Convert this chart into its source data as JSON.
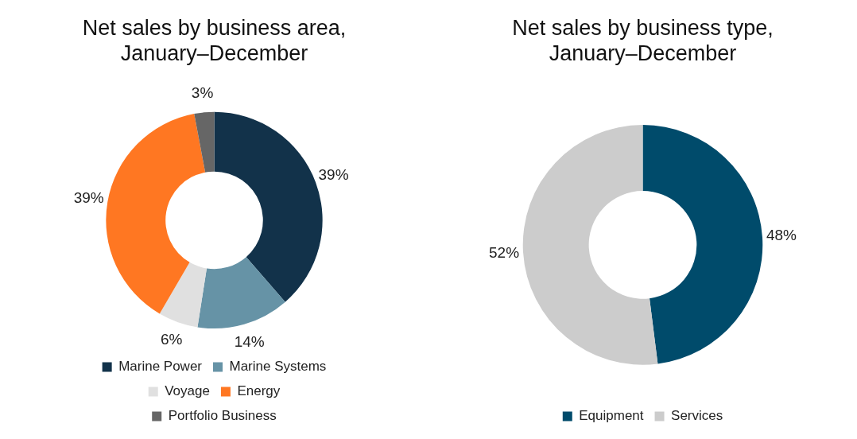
{
  "chart_data": [
    {
      "type": "donut",
      "title": "Net sales by business area, January–December",
      "categories": [
        "Marine Power",
        "Marine Systems",
        "Voyage",
        "Energy",
        "Portfolio Business"
      ],
      "values": [
        39,
        14,
        6,
        39,
        3
      ],
      "colors": [
        "#12324a",
        "#6693a6",
        "#e0e0e0",
        "#ff7722",
        "#666666"
      ],
      "value_labels": [
        "39%",
        "14%",
        "6%",
        "39%",
        "3%"
      ],
      "legend": "bottom"
    },
    {
      "type": "donut",
      "title": "Net sales by business type, January–December",
      "categories": [
        "Equipment",
        "Services"
      ],
      "values": [
        48,
        52
      ],
      "colors": [
        "#004b6b",
        "#cccccc"
      ],
      "value_labels": [
        "48%",
        "52%"
      ],
      "legend": "bottom"
    }
  ]
}
